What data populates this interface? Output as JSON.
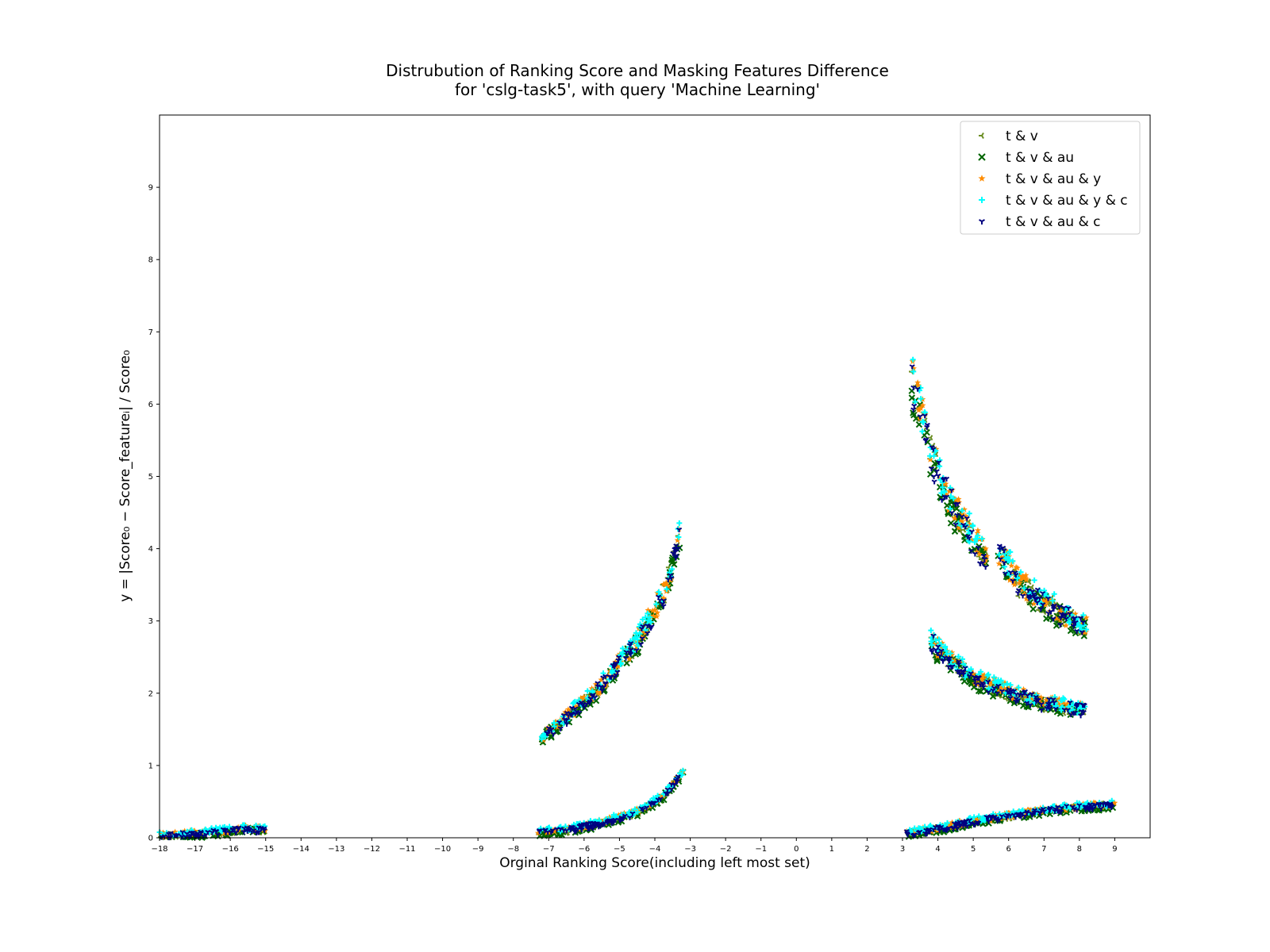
{
  "chart_data": {
    "type": "scatter",
    "title_lines": [
      "Distrubution of Ranking Score and Masking Features Difference",
      "for 'cslg-task5', with query 'Machine Learning'"
    ],
    "xlabel": "Orginal Ranking Score(including left most set)",
    "ylabel": "y = |Score₀ − Score_featureᵢ| / Score₀",
    "xlim": [
      -18,
      10
    ],
    "ylim": [
      0,
      10
    ],
    "x_ticks": [
      -18,
      -17,
      -16,
      -15,
      -14,
      -13,
      -12,
      -11,
      -10,
      -9,
      -8,
      -7,
      -6,
      -5,
      -4,
      -3,
      -2,
      -1,
      0,
      1,
      2,
      3,
      4,
      5,
      6,
      7,
      8,
      9
    ],
    "x_tick_labels": [
      "−18",
      "−17",
      "−16",
      "−15",
      "−14",
      "−13",
      "−12",
      "−11",
      "−10",
      "−9",
      "−8",
      "−7",
      "−6",
      "−5",
      "−4",
      "−3",
      "−2",
      "−1",
      "0",
      "1",
      "2",
      "3",
      "4",
      "5",
      "6",
      "7",
      "8",
      "9"
    ],
    "y_ticks": [
      0,
      1,
      2,
      3,
      4,
      5,
      6,
      7,
      8,
      9
    ],
    "y_tick_labels": [
      "0",
      "1",
      "2",
      "3",
      "4",
      "5",
      "6",
      "7",
      "8",
      "9"
    ],
    "grid": false,
    "legend_position": "top-right",
    "series": [
      {
        "name": "t & v",
        "marker": "tri-right",
        "color": "#6b8e23"
      },
      {
        "name": "t & v & au",
        "marker": "x",
        "color": "#006400"
      },
      {
        "name": "t & v & au & y",
        "marker": "star",
        "color": "#ff8c00"
      },
      {
        "name": "t & v & au & y & c",
        "marker": "plus",
        "color": "#00ffff"
      },
      {
        "name": "t & v & au & c",
        "marker": "tri-down",
        "color": "#000080"
      }
    ],
    "clusters": [
      {
        "description_x_range": [
          -18,
          -15
        ],
        "curve": [
          [
            -18,
            0.02
          ],
          [
            -17,
            0.05
          ],
          [
            -16,
            0.09
          ],
          [
            -15.6,
            0.12
          ],
          [
            -15,
            0.1
          ]
        ]
      },
      {
        "description_x_range": [
          -7.3,
          -3.2
        ],
        "curve": [
          [
            -7.3,
            0.07
          ],
          [
            -6.5,
            0.1
          ],
          [
            -5.5,
            0.2
          ],
          [
            -4.5,
            0.35
          ],
          [
            -3.8,
            0.55
          ],
          [
            -3.2,
            0.9
          ]
        ]
      },
      {
        "description_x_range": [
          -7.2,
          -3.2
        ],
        "curve": [
          [
            -7.2,
            1.38
          ],
          [
            -6.5,
            1.65
          ],
          [
            -5.5,
            2.1
          ],
          [
            -4.5,
            2.7
          ],
          [
            -3.8,
            3.3
          ],
          [
            -3.3,
            4.1
          ]
        ]
      },
      {
        "description_x_range": [
          3.2,
          5.5
        ],
        "curve": [
          [
            3.25,
            6.33
          ],
          [
            3.45,
            5.95
          ],
          [
            3.6,
            5.65
          ],
          [
            4.0,
            5.0
          ],
          [
            4.5,
            4.5
          ],
          [
            5.0,
            4.1
          ],
          [
            5.4,
            3.85
          ]
        ]
      },
      {
        "description_x_range": [
          5.6,
          8.2
        ],
        "curve": [
          [
            5.7,
            3.95
          ],
          [
            6.3,
            3.5
          ],
          [
            7.0,
            3.25
          ],
          [
            7.6,
            3.05
          ],
          [
            8.2,
            2.9
          ]
        ]
      },
      {
        "description_x_range": [
          3.8,
          8.2
        ],
        "curve": [
          [
            3.8,
            2.7
          ],
          [
            4.3,
            2.45
          ],
          [
            5.0,
            2.2
          ],
          [
            6.0,
            2.0
          ],
          [
            7.0,
            1.85
          ],
          [
            8.2,
            1.75
          ]
        ]
      },
      {
        "description_x_range": [
          3.1,
          9.0
        ],
        "curve": [
          [
            3.1,
            0.05
          ],
          [
            4.0,
            0.12
          ],
          [
            5.0,
            0.22
          ],
          [
            6.0,
            0.3
          ],
          [
            7.0,
            0.37
          ],
          [
            8.0,
            0.42
          ],
          [
            9.0,
            0.45
          ]
        ]
      }
    ]
  }
}
